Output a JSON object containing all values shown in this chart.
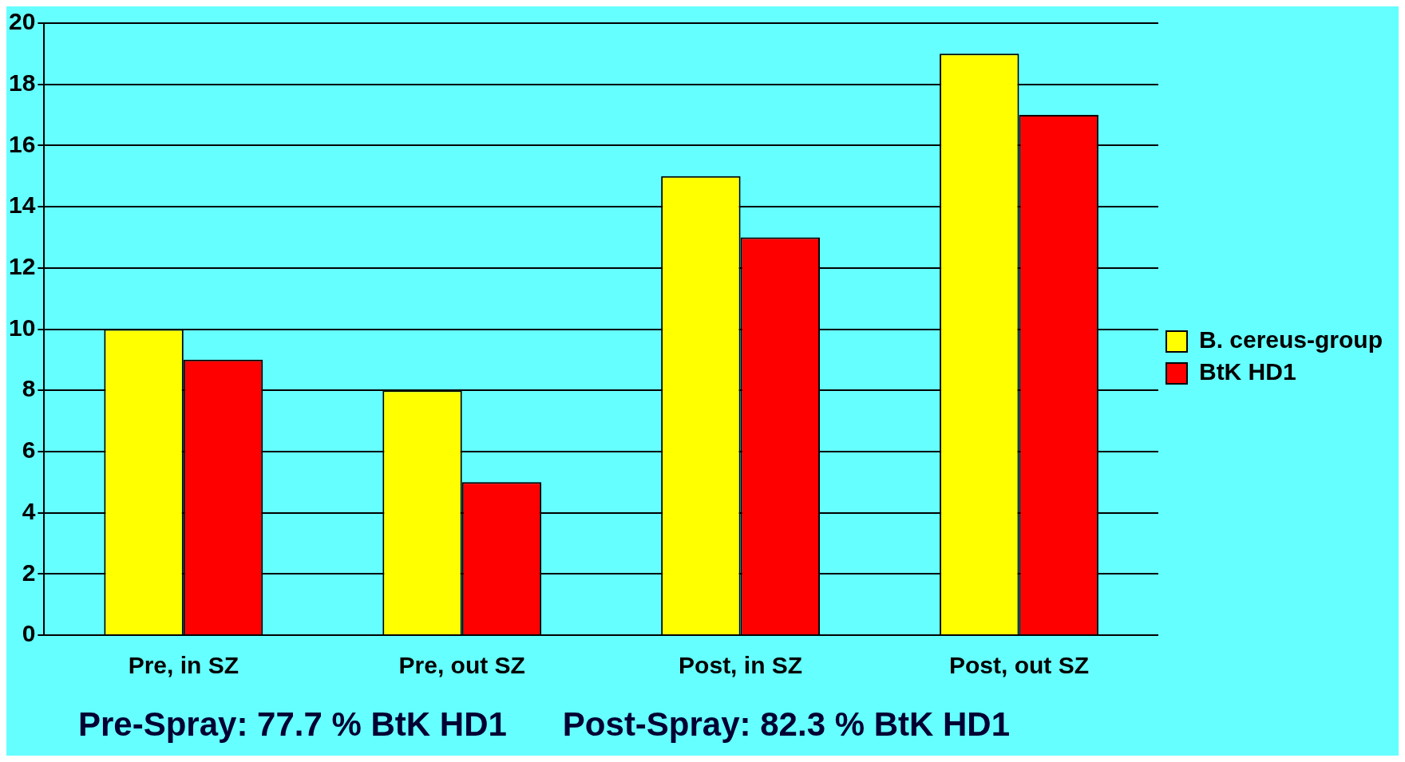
{
  "chart_data": {
    "type": "bar",
    "categories": [
      "Pre, in SZ",
      "Pre, out SZ",
      "Post, in SZ",
      "Post, out SZ"
    ],
    "series": [
      {
        "name": "B. cereus-group",
        "color": "#ffff00",
        "values": [
          10,
          8,
          15,
          19
        ]
      },
      {
        "name": "BtK HD1",
        "color": "#ff0000",
        "values": [
          9,
          5,
          13,
          17
        ]
      }
    ],
    "ylim": [
      0,
      20
    ],
    "yticks": [
      0,
      2,
      4,
      6,
      8,
      10,
      12,
      14,
      16,
      18,
      20
    ],
    "grid": "y",
    "legend": "right",
    "annotations": [
      "Pre-Spray: 77.7 % BtK HD1",
      "Post-Spray: 82.3 % BtK HD1"
    ]
  }
}
